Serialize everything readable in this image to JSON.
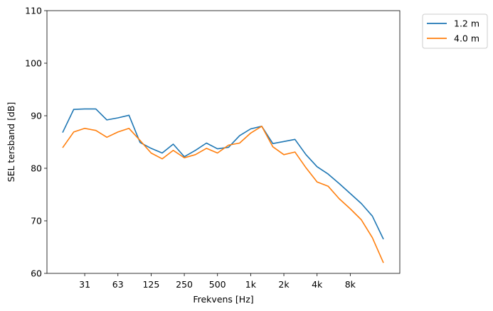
{
  "chart_data": {
    "type": "line",
    "title": "",
    "xlabel": "Frekvens [Hz]",
    "ylabel": "SEL tersband [dB]",
    "ylim": [
      60,
      110
    ],
    "yticks": [
      60,
      70,
      80,
      90,
      100,
      110
    ],
    "xtick_labels": [
      "31",
      "63",
      "125",
      "250",
      "500",
      "1k",
      "2k",
      "4k",
      "8k"
    ],
    "x": [
      "20",
      "25",
      "31.5",
      "40",
      "50",
      "63",
      "80",
      "100",
      "125",
      "160",
      "200",
      "250",
      "315",
      "400",
      "500",
      "630",
      "800",
      "1k",
      "1.25k",
      "1.6k",
      "2k",
      "2.5k",
      "3.15k",
      "4k",
      "5k",
      "6.3k",
      "8k",
      "10k",
      "12.5k",
      "16k"
    ],
    "grid": false,
    "legend_position": "outside-top-right",
    "series": [
      {
        "name": "1.2 m",
        "color": "#1f77b4",
        "values": [
          86.8,
          91.2,
          91.3,
          91.3,
          89.2,
          89.6,
          90.1,
          84.9,
          83.8,
          82.9,
          84.6,
          82.2,
          83.4,
          84.8,
          83.7,
          84.0,
          86.2,
          87.5,
          88.0,
          84.7,
          85.1,
          85.5,
          82.6,
          80.3,
          78.9,
          77.1,
          75.2,
          73.3,
          70.9,
          66.5
        ]
      },
      {
        "name": "4.0 m",
        "color": "#ff7f0e",
        "values": [
          83.9,
          86.9,
          87.6,
          87.2,
          85.9,
          86.9,
          87.6,
          85.3,
          82.9,
          81.8,
          83.4,
          82.0,
          82.6,
          83.8,
          82.9,
          84.4,
          84.8,
          86.7,
          88.0,
          84.1,
          82.6,
          83.1,
          80.1,
          77.4,
          76.6,
          74.2,
          72.3,
          70.2,
          66.8,
          62.0
        ]
      }
    ]
  }
}
